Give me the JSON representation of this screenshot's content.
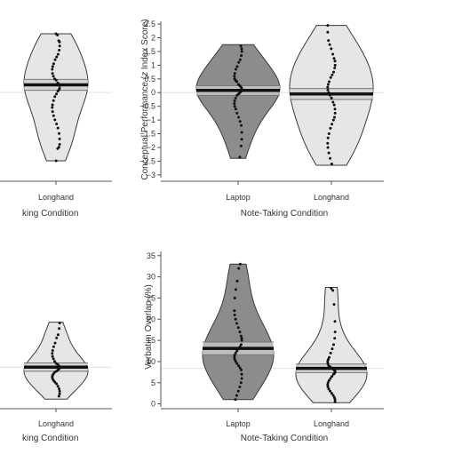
{
  "chart_data": [
    {
      "panel": "top-left (cropped)",
      "type": "violin",
      "xlabel": "Note-Taking Condition",
      "xlabel_visible": "king Condition",
      "categories": [
        "Longhand"
      ],
      "violins": [
        {
          "category": "Longhand",
          "fill": "#e6e6e6",
          "mean": 0.28,
          "ci": [
            0.08,
            0.48
          ],
          "range": [
            -2.5,
            2.15
          ],
          "points": [
            2.15,
            2.1,
            1.9,
            1.85,
            1.7,
            1.55,
            1.4,
            1.3,
            1.2,
            1.05,
            0.95,
            0.85,
            0.7,
            0.6,
            0.5,
            0.45,
            0.35,
            0.3,
            0.25,
            0.15,
            0.1,
            0.05,
            -0.05,
            -0.15,
            -0.3,
            -0.45,
            -0.55,
            -0.7,
            -0.85,
            -1.0,
            -1.15,
            -1.3,
            -1.5,
            -1.7,
            -1.9,
            -2.0,
            -2.05,
            -2.5
          ]
        }
      ]
    },
    {
      "panel": "top-right",
      "type": "violin",
      "xlabel": "Note-Taking Condition",
      "ylabel_parts": [
        "Conceptual Performance (",
        "z",
        " Index Score)"
      ],
      "ylim": [
        -3.2,
        2.6
      ],
      "yticks": [
        "2.5",
        "2",
        "1.5",
        "1",
        "0.5",
        "0",
        "−0.5",
        "−1",
        "−1.5",
        "−2",
        "−2.5",
        "−3"
      ],
      "ytick_values": [
        2.5,
        2,
        1.5,
        1,
        0.5,
        0,
        -0.5,
        -1,
        -1.5,
        -2,
        -2.5,
        -3
      ],
      "categories": [
        "Laptop",
        "Longhand"
      ],
      "violins": [
        {
          "category": "Laptop",
          "fill": "#8c8c8c",
          "mean": 0.08,
          "ci": [
            -0.1,
            0.25
          ],
          "range": [
            -2.4,
            1.75
          ],
          "points": [
            1.7,
            1.6,
            1.5,
            1.35,
            1.2,
            1.1,
            0.95,
            0.85,
            0.7,
            0.6,
            0.5,
            0.45,
            0.4,
            0.3,
            0.25,
            0.2,
            0.15,
            0.1,
            0.05,
            0.0,
            -0.05,
            -0.1,
            -0.2,
            -0.3,
            -0.4,
            -0.5,
            -0.6,
            -0.75,
            -0.9,
            -1.05,
            -1.2,
            -1.45,
            -1.7,
            -1.95,
            -2.35
          ]
        },
        {
          "category": "Longhand",
          "fill": "#e6e6e6",
          "mean": -0.05,
          "ci": [
            -0.25,
            0.15
          ],
          "range": [
            -2.65,
            2.45
          ],
          "points": [
            2.45,
            2.2,
            1.9,
            1.75,
            1.6,
            1.4,
            1.25,
            1.15,
            1.0,
            0.9,
            0.75,
            0.65,
            0.55,
            0.4,
            0.3,
            0.2,
            0.1,
            0.0,
            -0.1,
            -0.2,
            -0.35,
            -0.45,
            -0.6,
            -0.75,
            -0.9,
            -1.0,
            -1.15,
            -1.3,
            -1.5,
            -1.65,
            -1.85,
            -2.0,
            -2.2,
            -2.4,
            -2.6
          ]
        }
      ]
    },
    {
      "panel": "bottom-left (cropped)",
      "type": "violin",
      "xlabel": "Note-Taking Condition",
      "xlabel_visible": "king Condition",
      "categories": [
        "Longhand"
      ],
      "violins": [
        {
          "category": "Longhand",
          "fill": "#e6e6e6",
          "mean": 8.2,
          "ci": [
            7.2,
            9.2
          ],
          "range": [
            0.5,
            19.0
          ],
          "points": [
            18.8,
            17.5,
            16.0,
            15.2,
            14.0,
            13.1,
            12.2,
            11.5,
            10.8,
            10.2,
            9.6,
            9.1,
            8.8,
            8.5,
            8.2,
            8.0,
            7.8,
            7.5,
            7.2,
            7.0,
            6.6,
            6.2,
            5.8,
            5.4,
            5.0,
            4.6,
            4.2,
            3.6,
            3.0,
            2.4,
            1.8,
            1.2
          ]
        }
      ]
    },
    {
      "panel": "bottom-right",
      "type": "violin",
      "xlabel": "Note-Taking Condition",
      "ylabel_parts": [
        "Verbatim Overlap (%)"
      ],
      "ylim": [
        -0.5,
        36
      ],
      "yticks": [
        "35",
        "30",
        "25",
        "20",
        "15",
        "10",
        "5",
        "0"
      ],
      "ytick_values": [
        35,
        30,
        25,
        20,
        15,
        10,
        5,
        0
      ],
      "categories": [
        "Laptop",
        "Longhand"
      ],
      "violins": [
        {
          "category": "Laptop",
          "fill": "#8c8c8c",
          "mean": 13.1,
          "ci": [
            11.6,
            14.6
          ],
          "range": [
            1.0,
            33.0
          ],
          "points": [
            33.0,
            32.0,
            29.0,
            27.0,
            25.0,
            22.0,
            21.0,
            20.0,
            19.0,
            18.0,
            17.0,
            16.0,
            15.5,
            15.0,
            14.0,
            13.5,
            13.0,
            12.5,
            12.0,
            11.5,
            11.0,
            10.5,
            10.0,
            9.5,
            9.0,
            8.5,
            8.0,
            7.0,
            6.0,
            5.0,
            4.0,
            3.0,
            2.0,
            1.0
          ]
        },
        {
          "category": "Longhand",
          "fill": "#e6e6e6",
          "mean": 8.4,
          "ci": [
            7.4,
            9.4
          ],
          "range": [
            0.3,
            27.5
          ],
          "points": [
            27.3,
            26.8,
            23.5,
            19.5,
            17.0,
            15.5,
            14.0,
            13.0,
            12.0,
            11.0,
            10.5,
            10.0,
            9.5,
            9.0,
            8.8,
            8.5,
            8.2,
            8.0,
            7.8,
            7.5,
            7.2,
            7.0,
            6.5,
            6.0,
            5.5,
            5.0,
            4.5,
            4.0,
            3.5,
            3.0,
            2.5,
            2.0,
            1.5,
            1.0,
            0.5
          ]
        }
      ]
    }
  ]
}
